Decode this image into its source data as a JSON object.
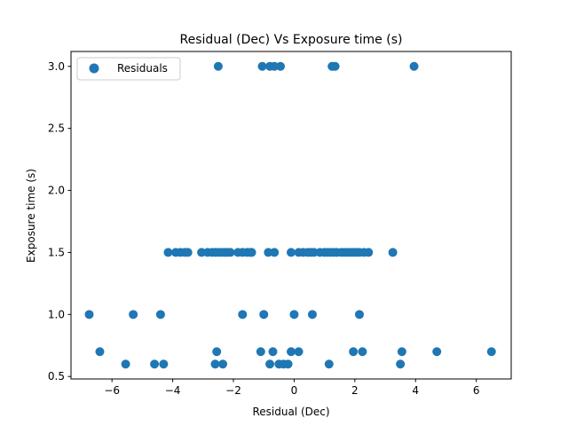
{
  "chart_data": {
    "type": "scatter",
    "title": "Residual (Dec) Vs Exposure time (s)",
    "xlabel": "Residual (Dec)",
    "ylabel": "Exposure time (s)",
    "xlim": [
      -7.35,
      7.15
    ],
    "ylim": [
      0.48,
      3.12
    ],
    "xticks": [
      -6,
      -4,
      -2,
      0,
      2,
      4,
      6
    ],
    "xtick_labels": [
      "−6",
      "−4",
      "−2",
      "0",
      "2",
      "4",
      "6"
    ],
    "yticks": [
      0.5,
      1.0,
      1.5,
      2.0,
      2.5,
      3.0
    ],
    "ytick_labels": [
      "0.5",
      "1.0",
      "1.5",
      "2.0",
      "2.5",
      "3.0"
    ],
    "grid": false,
    "legend": {
      "position": "top-left",
      "entries": [
        "Residuals"
      ]
    },
    "color": "#1f77b4",
    "series": [
      {
        "name": "Residuals",
        "points": [
          [
            -2.5,
            3.0
          ],
          [
            -1.05,
            3.0
          ],
          [
            -0.8,
            3.0
          ],
          [
            -0.65,
            3.0
          ],
          [
            -0.45,
            3.0
          ],
          [
            1.25,
            3.0
          ],
          [
            1.35,
            3.0
          ],
          [
            3.95,
            3.0
          ],
          [
            -4.15,
            1.5
          ],
          [
            -3.9,
            1.5
          ],
          [
            -3.75,
            1.5
          ],
          [
            -3.6,
            1.5
          ],
          [
            -3.5,
            1.5
          ],
          [
            -3.05,
            1.5
          ],
          [
            -2.85,
            1.5
          ],
          [
            -2.7,
            1.5
          ],
          [
            -2.6,
            1.5
          ],
          [
            -2.5,
            1.5
          ],
          [
            -2.4,
            1.5
          ],
          [
            -2.3,
            1.5
          ],
          [
            -2.2,
            1.5
          ],
          [
            -2.1,
            1.5
          ],
          [
            -1.85,
            1.5
          ],
          [
            -1.7,
            1.5
          ],
          [
            -1.55,
            1.5
          ],
          [
            -1.45,
            1.5
          ],
          [
            -1.4,
            1.5
          ],
          [
            -0.85,
            1.5
          ],
          [
            -0.65,
            1.5
          ],
          [
            -0.1,
            1.5
          ],
          [
            0.15,
            1.5
          ],
          [
            0.3,
            1.5
          ],
          [
            0.45,
            1.5
          ],
          [
            0.55,
            1.5
          ],
          [
            0.65,
            1.5
          ],
          [
            0.85,
            1.5
          ],
          [
            1.0,
            1.5
          ],
          [
            1.1,
            1.5
          ],
          [
            1.2,
            1.5
          ],
          [
            1.3,
            1.5
          ],
          [
            1.4,
            1.5
          ],
          [
            1.55,
            1.5
          ],
          [
            1.65,
            1.5
          ],
          [
            1.75,
            1.5
          ],
          [
            1.85,
            1.5
          ],
          [
            1.95,
            1.5
          ],
          [
            2.05,
            1.5
          ],
          [
            2.15,
            1.5
          ],
          [
            2.3,
            1.5
          ],
          [
            2.45,
            1.5
          ],
          [
            3.25,
            1.5
          ],
          [
            -6.75,
            1.0
          ],
          [
            -5.3,
            1.0
          ],
          [
            -4.4,
            1.0
          ],
          [
            -1.7,
            1.0
          ],
          [
            -1.0,
            1.0
          ],
          [
            0.0,
            1.0
          ],
          [
            0.6,
            1.0
          ],
          [
            2.15,
            1.0
          ],
          [
            -6.4,
            0.7
          ],
          [
            -2.55,
            0.7
          ],
          [
            -1.1,
            0.7
          ],
          [
            -0.7,
            0.7
          ],
          [
            -0.1,
            0.7
          ],
          [
            0.15,
            0.7
          ],
          [
            1.95,
            0.7
          ],
          [
            2.25,
            0.7
          ],
          [
            3.55,
            0.7
          ],
          [
            4.7,
            0.7
          ],
          [
            6.5,
            0.7
          ],
          [
            -5.55,
            0.6
          ],
          [
            -4.6,
            0.6
          ],
          [
            -4.3,
            0.6
          ],
          [
            -2.6,
            0.6
          ],
          [
            -2.35,
            0.6
          ],
          [
            -0.8,
            0.6
          ],
          [
            -0.5,
            0.6
          ],
          [
            -0.35,
            0.6
          ],
          [
            -0.2,
            0.6
          ],
          [
            1.15,
            0.6
          ],
          [
            3.5,
            0.6
          ]
        ]
      }
    ]
  }
}
